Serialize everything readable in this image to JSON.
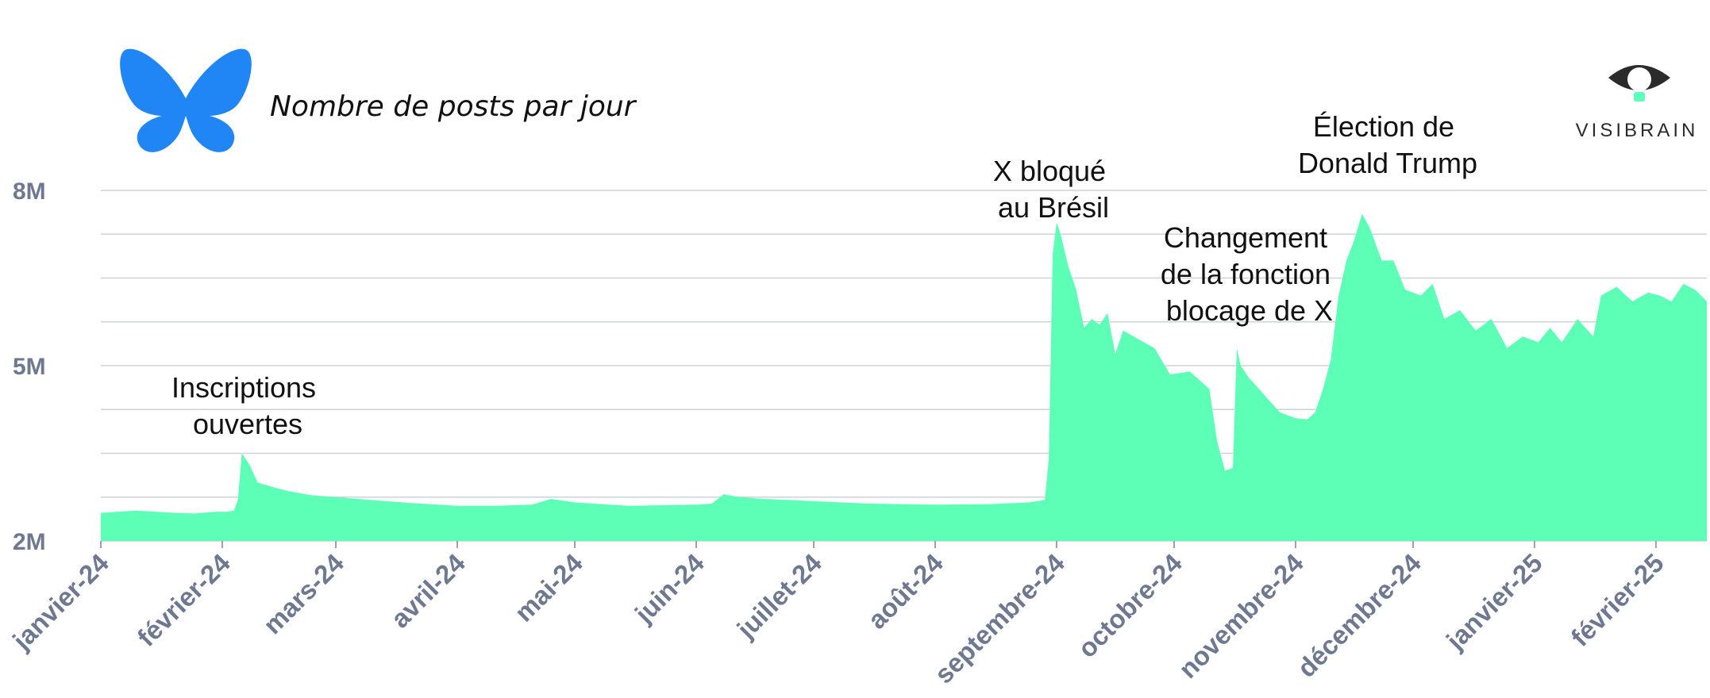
{
  "title": "Nombre de posts par jour",
  "logo": {
    "icon": "butterfly-icon",
    "color": "#2186f5"
  },
  "brand": {
    "name": "VISIBRAIN",
    "icon": "eye-icon",
    "accent": "#5dffba"
  },
  "chart_data": {
    "type": "area",
    "color": "#5dffb7",
    "title": "Nombre de posts par jour",
    "ylim": [
      2000000,
      8000000
    ],
    "yticks": [
      {
        "value": 2000000,
        "label": "2M"
      },
      {
        "value": 5000000,
        "label": "5M"
      },
      {
        "value": 8000000,
        "label": "8M"
      }
    ],
    "grid_values": [
      2000000,
      2750000,
      3500000,
      4250000,
      5000000,
      5750000,
      6500000,
      7250000,
      8000000
    ],
    "xlim": [
      "2024-01-01",
      "2025-02-14"
    ],
    "xticks": [
      {
        "date": "2024-01-01",
        "label": "janvier-24"
      },
      {
        "date": "2024-02-01",
        "label": "février-24"
      },
      {
        "date": "2024-03-01",
        "label": "mars-24"
      },
      {
        "date": "2024-04-01",
        "label": "avril-24"
      },
      {
        "date": "2024-05-01",
        "label": "mai-24"
      },
      {
        "date": "2024-06-01",
        "label": "juin-24"
      },
      {
        "date": "2024-07-01",
        "label": "juillet-24"
      },
      {
        "date": "2024-08-01",
        "label": "août-24"
      },
      {
        "date": "2024-09-01",
        "label": "septembre-24"
      },
      {
        "date": "2024-10-01",
        "label": "octobre-24"
      },
      {
        "date": "2024-11-01",
        "label": "novembre-24"
      },
      {
        "date": "2024-12-01",
        "label": "décembre-24"
      },
      {
        "date": "2025-01-01",
        "label": "janvier-25"
      },
      {
        "date": "2025-02-01",
        "label": "février-25"
      }
    ],
    "series": [
      {
        "points": [
          [
            "2024-01-01",
            2480000
          ],
          [
            "2024-01-05",
            2500000
          ],
          [
            "2024-01-10",
            2520000
          ],
          [
            "2024-01-15",
            2500000
          ],
          [
            "2024-01-20",
            2480000
          ],
          [
            "2024-01-25",
            2470000
          ],
          [
            "2024-01-30",
            2500000
          ],
          [
            "2024-02-02",
            2500000
          ],
          [
            "2024-02-04",
            2520000
          ],
          [
            "2024-02-05",
            2700000
          ],
          [
            "2024-02-06",
            3500000
          ],
          [
            "2024-02-08",
            3300000
          ],
          [
            "2024-02-10",
            3000000
          ],
          [
            "2024-02-14",
            2920000
          ],
          [
            "2024-02-18",
            2850000
          ],
          [
            "2024-02-24",
            2780000
          ],
          [
            "2024-03-01",
            2750000
          ],
          [
            "2024-03-10",
            2700000
          ],
          [
            "2024-03-20",
            2650000
          ],
          [
            "2024-04-01",
            2600000
          ],
          [
            "2024-04-10",
            2600000
          ],
          [
            "2024-04-20",
            2620000
          ],
          [
            "2024-04-25",
            2720000
          ],
          [
            "2024-05-01",
            2660000
          ],
          [
            "2024-05-15",
            2600000
          ],
          [
            "2024-06-01",
            2620000
          ],
          [
            "2024-06-05",
            2640000
          ],
          [
            "2024-06-08",
            2800000
          ],
          [
            "2024-06-12",
            2750000
          ],
          [
            "2024-06-18",
            2720000
          ],
          [
            "2024-06-25",
            2700000
          ],
          [
            "2024-07-01",
            2680000
          ],
          [
            "2024-07-15",
            2640000
          ],
          [
            "2024-08-01",
            2620000
          ],
          [
            "2024-08-15",
            2630000
          ],
          [
            "2024-08-25",
            2660000
          ],
          [
            "2024-08-29",
            2700000
          ],
          [
            "2024-08-30",
            3400000
          ],
          [
            "2024-08-31",
            6900000
          ],
          [
            "2024-09-01",
            7450000
          ],
          [
            "2024-09-02",
            7250000
          ],
          [
            "2024-09-04",
            6700000
          ],
          [
            "2024-09-06",
            6300000
          ],
          [
            "2024-09-08",
            5650000
          ],
          [
            "2024-09-10",
            5800000
          ],
          [
            "2024-09-12",
            5700000
          ],
          [
            "2024-09-14",
            5900000
          ],
          [
            "2024-09-16",
            5200000
          ],
          [
            "2024-09-18",
            5600000
          ],
          [
            "2024-09-22",
            5450000
          ],
          [
            "2024-09-26",
            5300000
          ],
          [
            "2024-09-30",
            4850000
          ],
          [
            "2024-10-05",
            4900000
          ],
          [
            "2024-10-10",
            4600000
          ],
          [
            "2024-10-12",
            3700000
          ],
          [
            "2024-10-14",
            3200000
          ],
          [
            "2024-10-16",
            3250000
          ],
          [
            "2024-10-17",
            5300000
          ],
          [
            "2024-10-18",
            5000000
          ],
          [
            "2024-10-20",
            4800000
          ],
          [
            "2024-10-24",
            4500000
          ],
          [
            "2024-10-28",
            4200000
          ],
          [
            "2024-11-01",
            4100000
          ],
          [
            "2024-11-04",
            4080000
          ],
          [
            "2024-11-06",
            4200000
          ],
          [
            "2024-11-08",
            4600000
          ],
          [
            "2024-11-10",
            5100000
          ],
          [
            "2024-11-12",
            6200000
          ],
          [
            "2024-11-14",
            6800000
          ],
          [
            "2024-11-16",
            7150000
          ],
          [
            "2024-11-18",
            7600000
          ],
          [
            "2024-11-20",
            7350000
          ],
          [
            "2024-11-23",
            6800000
          ],
          [
            "2024-11-26",
            6800000
          ],
          [
            "2024-11-29",
            6300000
          ],
          [
            "2024-12-03",
            6200000
          ],
          [
            "2024-12-06",
            6400000
          ],
          [
            "2024-12-09",
            5800000
          ],
          [
            "2024-12-13",
            5950000
          ],
          [
            "2024-12-17",
            5600000
          ],
          [
            "2024-12-21",
            5800000
          ],
          [
            "2024-12-25",
            5300000
          ],
          [
            "2024-12-29",
            5500000
          ],
          [
            "2025-01-02",
            5400000
          ],
          [
            "2025-01-05",
            5650000
          ],
          [
            "2025-01-08",
            5400000
          ],
          [
            "2025-01-12",
            5800000
          ],
          [
            "2025-01-16",
            5500000
          ],
          [
            "2025-01-18",
            6200000
          ],
          [
            "2025-01-22",
            6350000
          ],
          [
            "2025-01-26",
            6100000
          ],
          [
            "2025-01-30",
            6250000
          ],
          [
            "2025-02-02",
            6200000
          ],
          [
            "2025-02-05",
            6100000
          ],
          [
            "2025-02-08",
            6400000
          ],
          [
            "2025-02-11",
            6300000
          ],
          [
            "2025-02-14",
            6100000
          ]
        ]
      }
    ],
    "annotations": [
      {
        "lines": [
          "Inscriptions",
          "ouvertes"
        ]
      },
      {
        "lines": [
          "X bloqué",
          "au Brésil"
        ]
      },
      {
        "lines": [
          "Changement",
          "de la fonction",
          "blocage de X"
        ]
      },
      {
        "lines": [
          "Élection de",
          "Donald Trump"
        ]
      }
    ]
  }
}
